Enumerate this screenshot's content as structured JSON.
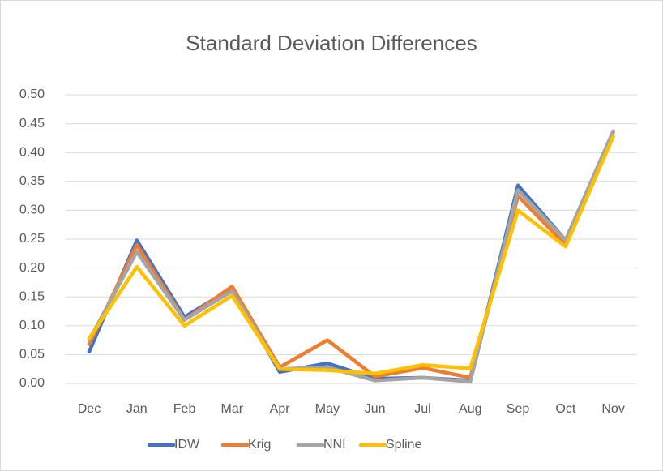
{
  "chart_data": {
    "type": "line",
    "title": "Standard Deviation Differences",
    "categories": [
      "Dec",
      "Jan",
      "Feb",
      "Mar",
      "Apr",
      "May",
      "Jun",
      "Jul",
      "Aug",
      "Sep",
      "Oct",
      "Nov"
    ],
    "series": [
      {
        "name": "IDW",
        "color": "#4472c4",
        "values": [
          0.055,
          0.248,
          0.115,
          0.165,
          0.02,
          0.035,
          0.008,
          0.01,
          0.005,
          0.343,
          0.248,
          0.437
        ]
      },
      {
        "name": "Krig",
        "color": "#ed7d31",
        "values": [
          0.068,
          0.24,
          0.11,
          0.168,
          0.028,
          0.075,
          0.012,
          0.027,
          0.01,
          0.325,
          0.24,
          0.435
        ]
      },
      {
        "name": "NNI",
        "color": "#a5a5a5",
        "values": [
          0.075,
          0.228,
          0.11,
          0.16,
          0.025,
          0.028,
          0.005,
          0.01,
          0.003,
          0.335,
          0.248,
          0.437
        ]
      },
      {
        "name": "Spline",
        "color": "#ffc000",
        "values": [
          0.078,
          0.202,
          0.1,
          0.152,
          0.025,
          0.023,
          0.017,
          0.032,
          0.026,
          0.3,
          0.237,
          0.428
        ]
      }
    ],
    "ylim": [
      0,
      0.5
    ],
    "yticks": [
      {
        "value": 0,
        "label": "0.00"
      },
      {
        "value": 0.05,
        "label": "0.05"
      },
      {
        "value": 0.1,
        "label": "0.10"
      },
      {
        "value": 0.15,
        "label": "0.15"
      },
      {
        "value": 0.2,
        "label": "0.20"
      },
      {
        "value": 0.25,
        "label": "0.25"
      },
      {
        "value": 0.3,
        "label": "0.30"
      },
      {
        "value": 0.35,
        "label": "0.35"
      },
      {
        "value": 0.4,
        "label": "0.40"
      },
      {
        "value": 0.45,
        "label": "0.45"
      },
      {
        "value": 0.5,
        "label": "0.50"
      }
    ],
    "grid": true,
    "legend": "bottom"
  }
}
